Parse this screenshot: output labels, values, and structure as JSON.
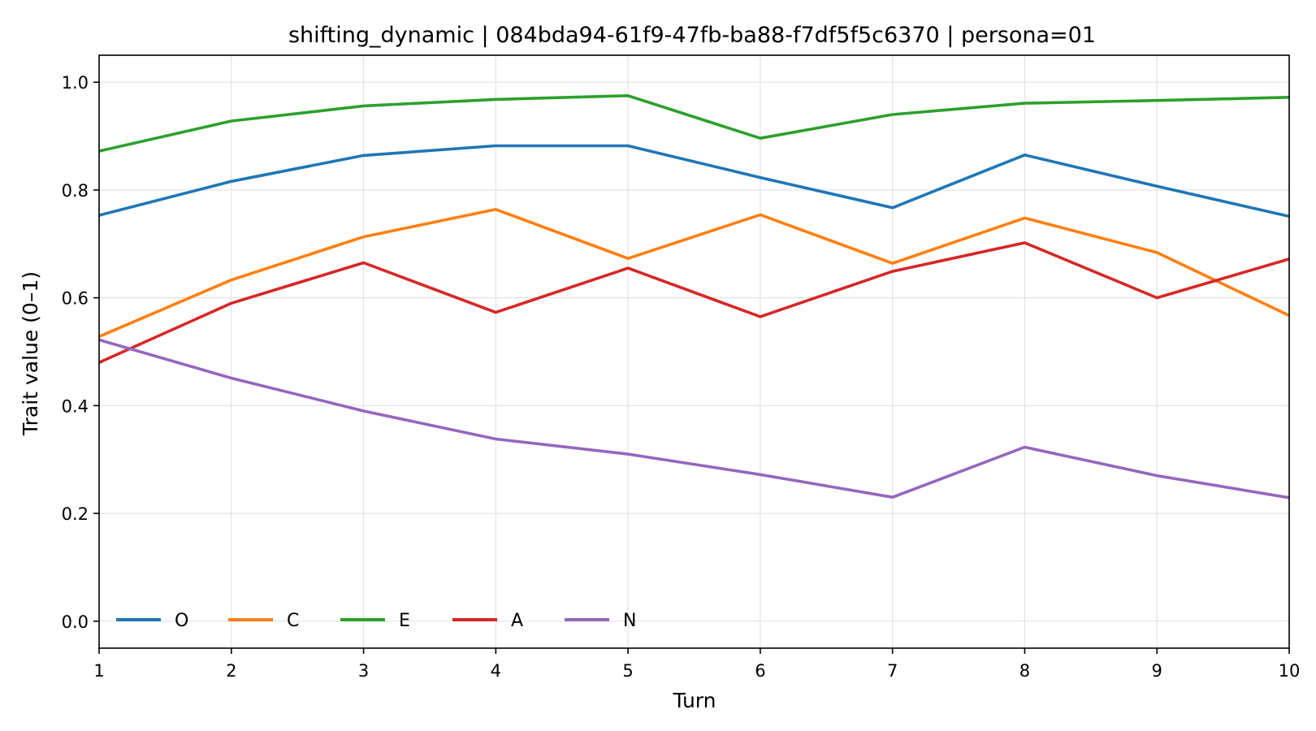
{
  "chart_data": {
    "type": "line",
    "title": "shifting_dynamic | 084bda94-61f9-47fb-ba88-f7df5f5c6370 | persona=01",
    "xlabel": "Turn",
    "ylabel": "Trait value (0–1)",
    "x": [
      1,
      2,
      3,
      4,
      5,
      6,
      7,
      8,
      9,
      10
    ],
    "x_ticks": [
      "1",
      "2",
      "3",
      "4",
      "5",
      "6",
      "7",
      "8",
      "9",
      "10"
    ],
    "y_ticks": [
      "0.0",
      "0.2",
      "0.4",
      "0.6",
      "0.8",
      "1.0"
    ],
    "xlim": [
      1,
      10
    ],
    "ylim": [
      -0.05,
      1.05
    ],
    "grid": true,
    "legend_position": "lower-left",
    "series": [
      {
        "name": "O",
        "color": "#1f77b4",
        "values": [
          0.753,
          0.816,
          0.864,
          0.882,
          0.882,
          0.823,
          0.767,
          0.865,
          0.807,
          0.751
        ]
      },
      {
        "name": "C",
        "color": "#ff7f0e",
        "values": [
          0.528,
          0.633,
          0.713,
          0.764,
          0.673,
          0.754,
          0.664,
          0.748,
          0.684,
          0.567
        ]
      },
      {
        "name": "E",
        "color": "#2ca02c",
        "values": [
          0.872,
          0.928,
          0.956,
          0.968,
          0.975,
          0.896,
          0.94,
          0.961,
          0.966,
          0.972
        ]
      },
      {
        "name": "A",
        "color": "#d62728",
        "values": [
          0.48,
          0.59,
          0.665,
          0.573,
          0.655,
          0.565,
          0.649,
          0.702,
          0.6,
          0.672
        ]
      },
      {
        "name": "N",
        "color": "#9467bd",
        "values": [
          0.522,
          0.451,
          0.39,
          0.338,
          0.31,
          0.272,
          0.23,
          0.323,
          0.27,
          0.229
        ]
      }
    ]
  }
}
